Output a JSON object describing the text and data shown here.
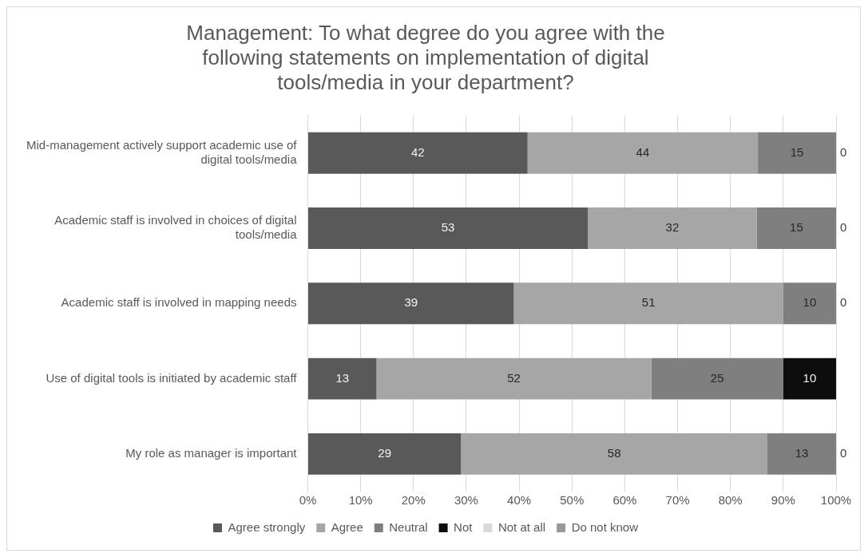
{
  "chart_data": {
    "type": "bar",
    "orientation": "horizontal",
    "stacked": true,
    "title": "Management: To what degree do you agree with the following statements on implementation of digital tools/media in your department?",
    "categories": [
      "Mid-management actively support academic use of digital tools/media",
      "Academic staff is involved in choices of digital tools/media",
      "Academic staff is involved in mapping needs",
      "Use of digital tools is initiated by academic staff",
      "My role as manager is important"
    ],
    "series": [
      {
        "name": "Agree strongly",
        "color": "#595959",
        "values": [
          41.6,
          53,
          39,
          13,
          29
        ],
        "value_labels": [
          "42",
          "53",
          "39",
          "13",
          "29"
        ]
      },
      {
        "name": "Agree",
        "color": "#a6a6a6",
        "values": [
          43.6,
          32,
          51,
          52,
          58
        ],
        "value_labels": [
          "44",
          "32",
          "51",
          "52",
          "58"
        ]
      },
      {
        "name": "Neutral",
        "color": "#7f7f7f",
        "values": [
          14.8,
          15,
          10,
          25,
          13
        ],
        "value_labels": [
          "15",
          "15",
          "10",
          "25",
          "13"
        ]
      },
      {
        "name": "Not",
        "color": "#0d0d0d",
        "values": [
          0,
          0,
          0,
          10,
          0
        ],
        "value_labels": [
          "0",
          "0",
          "0",
          "10",
          "0"
        ]
      },
      {
        "name": "Not at all",
        "color": "#d9d9d9",
        "values": [
          0,
          0,
          0,
          0,
          0
        ]
      },
      {
        "name": "Do not know",
        "color": "#999999",
        "values": [
          0,
          0,
          0,
          0,
          0
        ]
      }
    ],
    "xlim": [
      0,
      100
    ],
    "xticks": [
      {
        "value": 0,
        "label": "0%"
      },
      {
        "value": 10,
        "label": "10%"
      },
      {
        "value": 20,
        "label": "20%"
      },
      {
        "value": 30,
        "label": "30%"
      },
      {
        "value": 40,
        "label": "40%"
      },
      {
        "value": 50,
        "label": "50%"
      },
      {
        "value": 60,
        "label": "60%"
      },
      {
        "value": 70,
        "label": "70%"
      },
      {
        "value": 80,
        "label": "80%"
      },
      {
        "value": 90,
        "label": "90%"
      },
      {
        "value": 100,
        "label": "100%"
      }
    ],
    "grid": "x",
    "legend": "bottom"
  }
}
